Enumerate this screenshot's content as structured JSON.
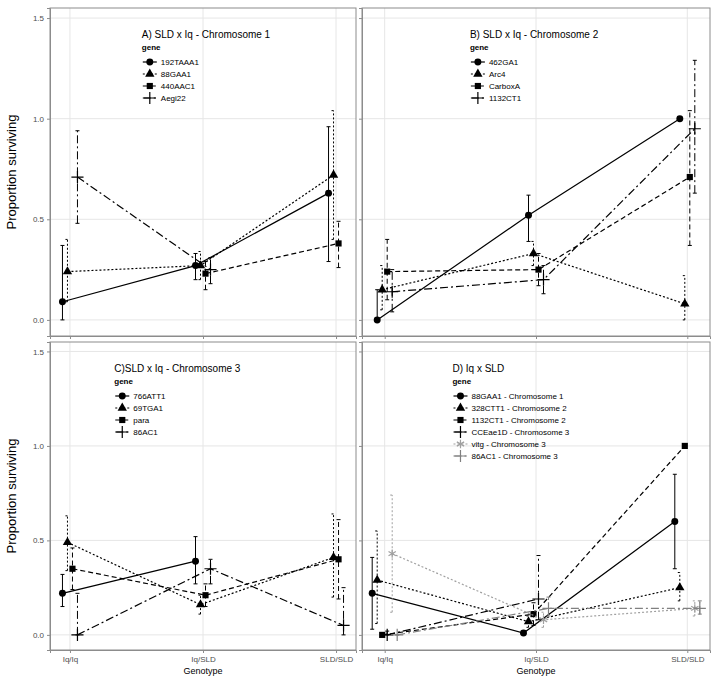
{
  "chart_data": [
    {
      "type": "line",
      "title": "A) SLD x Iq - Chromosome 1",
      "legend_title": "gene",
      "y_label": "Proportion surviving",
      "categories": [
        "Iq/Iq",
        "Iq/SLD",
        "SLD/SLD"
      ],
      "ylim": [
        -0.08,
        1.55
      ],
      "yticks": [
        {
          "value": 0,
          "label": "0.0"
        },
        0.5,
        {
          "value": 1,
          "label": "1.0"
        },
        1.5
      ],
      "grid": true,
      "tick_labels": "y",
      "series": [
        {
          "name": "192TAAA1",
          "color": "#000000",
          "marker": "circle",
          "line_style": "solid",
          "values": [
            0.09,
            0.27,
            0.63
          ],
          "lower": [
            0.0,
            0.2,
            0.29
          ],
          "upper": [
            0.37,
            0.33,
            0.96
          ]
        },
        {
          "name": "88GAA1",
          "color": "#000000",
          "marker": "triangle",
          "line_style": "dotted",
          "values": [
            0.24,
            0.27,
            0.72
          ],
          "lower": [
            0.09,
            0.2,
            0.4
          ],
          "upper": [
            0.4,
            0.34,
            1.04
          ]
        },
        {
          "name": "440AAC1",
          "color": "#000000",
          "marker": "square",
          "line_style": "dashed",
          "values": [
            null,
            0.23,
            0.38
          ],
          "lower": [
            null,
            0.15,
            0.26
          ],
          "upper": [
            null,
            0.29,
            0.49
          ]
        },
        {
          "name": "Aegi22",
          "color": "#000000",
          "marker": "plus",
          "line_style": "longdash",
          "values": [
            0.71,
            0.25,
            null
          ],
          "lower": [
            0.48,
            0.18,
            null
          ],
          "upper": [
            0.94,
            0.31,
            null
          ]
        }
      ]
    },
    {
      "type": "line",
      "title": "B) SLD x Iq - Chromosome 2",
      "legend_title": "gene",
      "categories": [
        "Iq/Iq",
        "Iq/SLD",
        "SLD/SLD"
      ],
      "ylim": [
        -0.08,
        1.55
      ],
      "yticks": [
        {
          "value": 0,
          "label": "0.0"
        },
        0.5,
        {
          "value": 1,
          "label": "1.0"
        },
        1.5
      ],
      "grid": true,
      "tick_labels": false,
      "series": [
        {
          "name": "462GA1",
          "color": "#000000",
          "marker": "circle",
          "line_style": "solid",
          "values": [
            0.0,
            0.52,
            1.0
          ],
          "lower": [
            0.0,
            0.39,
            1.0
          ],
          "upper": [
            0.15,
            0.62,
            1.0
          ]
        },
        {
          "name": "Arc4",
          "color": "#000000",
          "marker": "triangle",
          "line_style": "dotted",
          "values": [
            0.15,
            0.33,
            0.08
          ],
          "lower": [
            0.05,
            0.27,
            0.0
          ],
          "upper": [
            0.27,
            0.39,
            0.22
          ]
        },
        {
          "name": "CarboxA",
          "color": "#000000",
          "marker": "square",
          "line_style": "dashed",
          "values": [
            0.24,
            0.25,
            0.71
          ],
          "lower": [
            0.1,
            0.17,
            0.37
          ],
          "upper": [
            0.4,
            0.33,
            1.04
          ]
        },
        {
          "name": "1132CT1",
          "color": "#000000",
          "marker": "plus",
          "line_style": "longdash",
          "values": [
            0.14,
            0.2,
            0.95
          ],
          "lower": [
            0.04,
            0.13,
            0.63
          ],
          "upper": [
            0.25,
            0.27,
            1.29
          ]
        }
      ]
    },
    {
      "type": "line",
      "title": "C)SLD x Iq - Chromosome 3",
      "legend_title": "gene",
      "y_label": "Proportion surviving",
      "x_label": "Genotype",
      "categories": [
        "Iq/Iq",
        "Iq/SLD",
        "SLD/SLD"
      ],
      "ylim": [
        -0.08,
        1.55
      ],
      "yticks": [
        {
          "value": 0,
          "label": "0.0"
        },
        0.5,
        {
          "value": 1,
          "label": "1.0"
        },
        1.5
      ],
      "grid": true,
      "tick_labels": true,
      "series": [
        {
          "name": "766ATT1",
          "color": "#000000",
          "marker": "circle",
          "line_style": "solid",
          "values": [
            0.22,
            0.39,
            null
          ],
          "lower": [
            0.15,
            0.27,
            null
          ],
          "upper": [
            0.32,
            0.52,
            null
          ]
        },
        {
          "name": "69TGA1",
          "color": "#000000",
          "marker": "triangle",
          "line_style": "dotted",
          "values": [
            0.49,
            0.16,
            0.41
          ],
          "lower": [
            0.34,
            0.11,
            0.2
          ],
          "upper": [
            0.63,
            0.21,
            0.64
          ]
        },
        {
          "name": "para",
          "color": "#000000",
          "marker": "square",
          "line_style": "dashed",
          "values": [
            0.35,
            0.21,
            0.4
          ],
          "lower": [
            0.24,
            0.15,
            0.19
          ],
          "upper": [
            0.46,
            0.27,
            0.61
          ]
        },
        {
          "name": "86AC1",
          "color": "#000000",
          "marker": "plus",
          "line_style": "longdash",
          "values": [
            0.0,
            0.35,
            0.05
          ],
          "lower": [
            0.0,
            0.27,
            0.0
          ],
          "upper": [
            0.22,
            0.4,
            0.25
          ]
        }
      ]
    },
    {
      "type": "line",
      "title": "D) Iq x SLD",
      "legend_title": "gene",
      "x_label": "Genotype",
      "categories": [
        "Iq/Iq",
        "Iq/SLD",
        "SLD/SLD"
      ],
      "ylim": [
        -0.08,
        1.55
      ],
      "yticks": [
        {
          "value": 0,
          "label": "0.0"
        },
        0.5,
        {
          "value": 1,
          "label": "1.0"
        },
        1.5
      ],
      "grid": true,
      "tick_labels": "x",
      "series": [
        {
          "name": "88GAA1 - Chromosome 1",
          "color": "#000000",
          "marker": "circle",
          "line_style": "solid",
          "values": [
            0.22,
            0.01,
            0.6
          ],
          "lower": [
            0.03,
            0.0,
            0.35
          ],
          "upper": [
            0.41,
            0.02,
            0.85
          ]
        },
        {
          "name": "328CTT1 - Chromosome 2",
          "color": "#000000",
          "marker": "triangle",
          "line_style": "dotted",
          "values": [
            0.29,
            0.07,
            0.25
          ],
          "lower": [
            0.06,
            0.04,
            0.18
          ],
          "upper": [
            0.55,
            0.1,
            0.33
          ]
        },
        {
          "name": "1132CT1 - Chromosome 2",
          "color": "#000000",
          "marker": "square",
          "line_style": "dashed",
          "values": [
            0.0,
            0.11,
            1.0
          ],
          "lower": [
            0.0,
            0.05,
            1.0
          ],
          "upper": [
            0.0,
            0.17,
            1.0
          ]
        },
        {
          "name": "CCEae1D - Chromosome 3",
          "color": "#000000",
          "marker": "plus",
          "line_style": "longdash",
          "values": [
            0.0,
            0.19,
            null
          ],
          "lower": [
            0.0,
            0.08,
            null
          ],
          "upper": [
            0.02,
            0.42,
            null
          ]
        },
        {
          "name": "vitg - Chromosome 3",
          "color": "#a0a0a0",
          "marker": "asterisk",
          "line_style": "dotted",
          "values": [
            0.43,
            0.08,
            0.14
          ],
          "lower": [
            0.12,
            0.04,
            0.1
          ],
          "upper": [
            0.74,
            0.12,
            0.18
          ]
        },
        {
          "name": "86AC1 - Chromosome 3",
          "color": "#808080",
          "marker": "plus",
          "line_style": "longdash",
          "values": [
            0.0,
            0.14,
            0.14
          ],
          "lower": [
            0.0,
            0.1,
            0.11
          ],
          "upper": [
            0.0,
            0.2,
            0.18
          ]
        }
      ]
    }
  ]
}
